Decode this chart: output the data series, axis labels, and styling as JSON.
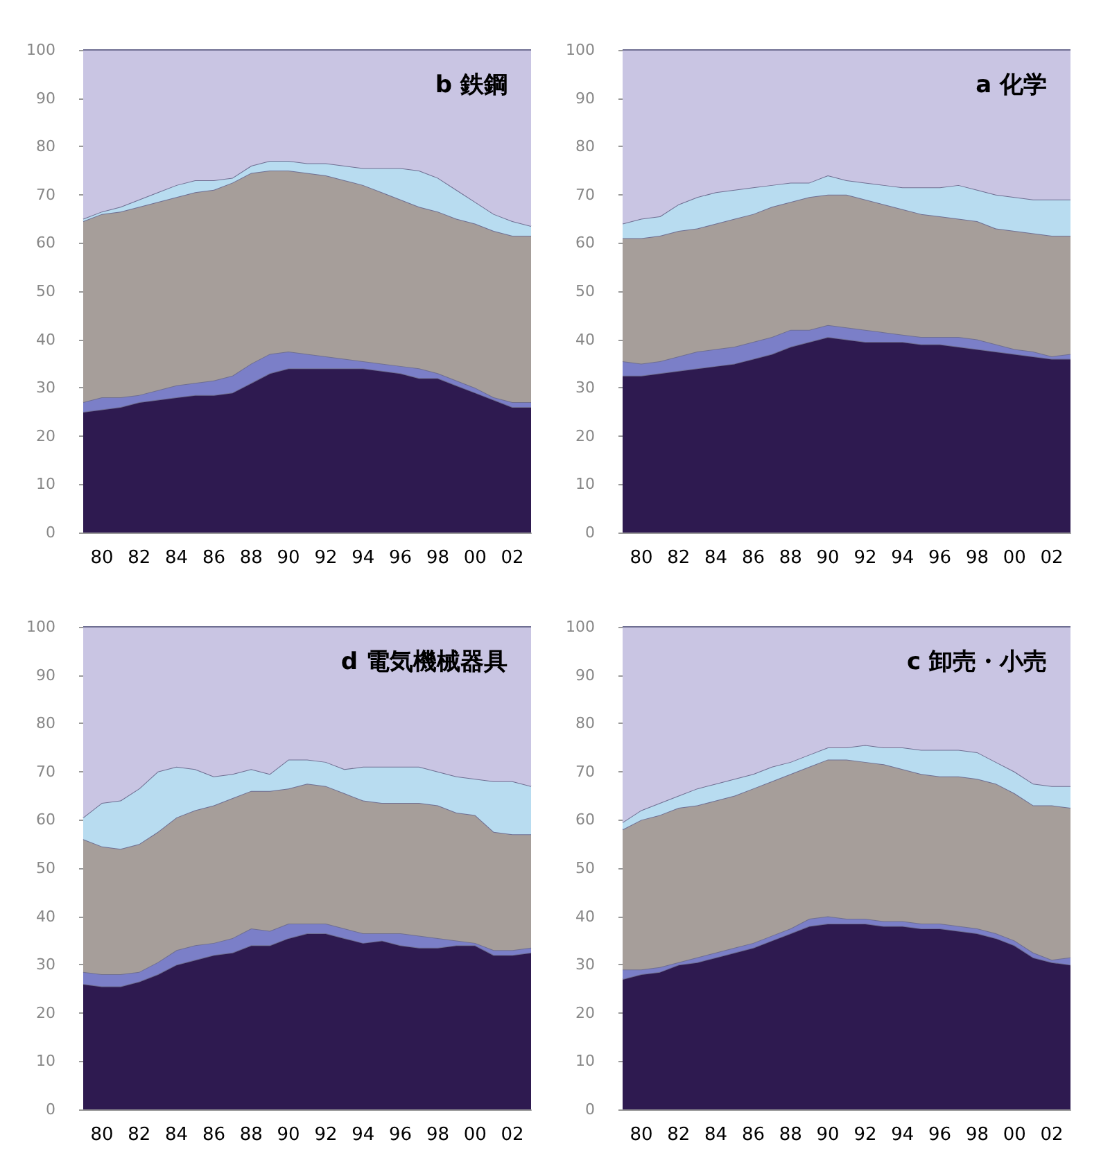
{
  "chart_data": [
    {
      "type": "area",
      "title": "b 鉄鋼",
      "stacked": true,
      "grid": false,
      "categories": [
        null,
        "80",
        null,
        "82",
        null,
        "84",
        null,
        "86",
        null,
        "88",
        null,
        "90",
        null,
        "92",
        null,
        "94",
        null,
        "96",
        null,
        "98",
        null,
        "00",
        null,
        "02",
        null
      ],
      "ylim": [
        0,
        100
      ],
      "yticks": [
        0,
        10,
        20,
        30,
        40,
        50,
        60,
        70,
        80,
        90,
        100
      ],
      "series": [
        {
          "color": "#2e1a50",
          "values": [
            25,
            25.5,
            26,
            27,
            27.5,
            28,
            28.5,
            28.5,
            29,
            31,
            33,
            34,
            34,
            34,
            34,
            34,
            33.5,
            33,
            32,
            32,
            30.5,
            29,
            27.5,
            26,
            26
          ]
        },
        {
          "color": "#7b7fc8",
          "values": [
            2,
            2.5,
            2,
            1.5,
            2,
            2.5,
            2.5,
            3,
            3.5,
            4,
            4,
            3.5,
            3,
            2.5,
            2,
            1.5,
            1.5,
            1.5,
            2,
            1,
            1,
            1,
            0.5,
            1,
            1
          ]
        },
        {
          "color": "#a69e9a",
          "values": [
            37.5,
            38,
            38.5,
            39,
            39,
            39,
            39.5,
            39.5,
            40,
            39.5,
            38,
            37.5,
            37.5,
            37.5,
            37,
            36.5,
            35.5,
            34.5,
            33.5,
            33.5,
            33.5,
            34,
            34.5,
            34.5,
            34.5
          ]
        },
        {
          "color": "#b8dcf0",
          "values": [
            0.5,
            0.5,
            1,
            1.5,
            2,
            2.5,
            2.5,
            2,
            1,
            1.5,
            2,
            2,
            2,
            2.5,
            3,
            3.5,
            5,
            6.5,
            7.5,
            7,
            6,
            4.5,
            3.5,
            3,
            2
          ]
        },
        {
          "color": "#c9c5e3",
          "values": [
            35,
            33.5,
            32.5,
            31,
            29.5,
            28,
            27,
            27,
            26.5,
            24,
            23,
            23,
            23.5,
            23.5,
            24,
            24.5,
            24.5,
            24.5,
            25,
            26.5,
            29,
            31.5,
            34,
            35.5,
            36.5
          ]
        }
      ]
    },
    {
      "type": "area",
      "title": "a 化学",
      "stacked": true,
      "grid": false,
      "categories": [
        null,
        "80",
        null,
        "82",
        null,
        "84",
        null,
        "86",
        null,
        "88",
        null,
        "90",
        null,
        "92",
        null,
        "94",
        null,
        "96",
        null,
        "98",
        null,
        "00",
        null,
        "02",
        null
      ],
      "ylim": [
        0,
        100
      ],
      "yticks": [
        0,
        10,
        20,
        30,
        40,
        50,
        60,
        70,
        80,
        90,
        100
      ],
      "series": [
        {
          "color": "#2e1a50",
          "values": [
            32.5,
            32.5,
            33,
            33.5,
            34,
            34.5,
            35,
            36,
            37,
            38.5,
            39.5,
            40.5,
            40,
            39.5,
            39.5,
            39.5,
            39,
            39,
            38.5,
            38,
            37.5,
            37,
            36.5,
            36,
            36
          ]
        },
        {
          "color": "#7b7fc8",
          "values": [
            3,
            2.5,
            2.5,
            3,
            3.5,
            3.5,
            3.5,
            3.5,
            3.5,
            3.5,
            2.5,
            2.5,
            2.5,
            2.5,
            2,
            1.5,
            1.5,
            1.5,
            2,
            2,
            1.5,
            1,
            1,
            0.5,
            1
          ]
        },
        {
          "color": "#a69e9a",
          "values": [
            25.5,
            26,
            26,
            26,
            25.5,
            26,
            26.5,
            26.5,
            27,
            26.5,
            27.5,
            27,
            27.5,
            27,
            26.5,
            26,
            25.5,
            25,
            24.5,
            24.5,
            24,
            24.5,
            24.5,
            25,
            24.5
          ]
        },
        {
          "color": "#b8dcf0",
          "values": [
            3,
            4,
            4,
            5.5,
            6.5,
            6.5,
            6,
            5.5,
            4.5,
            4,
            3,
            4,
            3,
            3.5,
            4,
            4.5,
            5.5,
            6,
            7,
            6.5,
            7,
            7,
            7,
            7.5,
            7.5
          ]
        },
        {
          "color": "#c9c5e3",
          "values": [
            36,
            35,
            34.5,
            32,
            30.5,
            29.5,
            29,
            28.5,
            28,
            27.5,
            27.5,
            26,
            27,
            27.5,
            28,
            28.5,
            28.5,
            28.5,
            28,
            29,
            30,
            30.5,
            31,
            31,
            31
          ]
        }
      ]
    },
    {
      "type": "area",
      "title": "d 電気機械器具",
      "stacked": true,
      "grid": false,
      "categories": [
        null,
        "80",
        null,
        "82",
        null,
        "84",
        null,
        "86",
        null,
        "88",
        null,
        "90",
        null,
        "92",
        null,
        "94",
        null,
        "96",
        null,
        "98",
        null,
        "00",
        null,
        "02",
        null
      ],
      "ylim": [
        0,
        100
      ],
      "yticks": [
        0,
        10,
        20,
        30,
        40,
        50,
        60,
        70,
        80,
        90,
        100
      ],
      "series": [
        {
          "color": "#2e1a50",
          "values": [
            26,
            25.5,
            25.5,
            26.5,
            28,
            30,
            31,
            32,
            32.5,
            34,
            34,
            35.5,
            36.5,
            36.5,
            35.5,
            34.5,
            35,
            34,
            33.5,
            33.5,
            34,
            34,
            32,
            32,
            32.5
          ]
        },
        {
          "color": "#7b7fc8",
          "values": [
            2.5,
            2.5,
            2.5,
            2,
            2.5,
            3,
            3,
            2.5,
            3,
            3.5,
            3,
            3,
            2,
            2,
            2,
            2,
            1.5,
            2.5,
            2.5,
            2,
            1,
            0.5,
            1,
            1,
            1
          ]
        },
        {
          "color": "#a69e9a",
          "values": [
            27.5,
            26.5,
            26,
            26.5,
            27,
            27.5,
            28,
            28.5,
            29,
            28.5,
            29,
            28,
            29,
            28.5,
            28,
            27.5,
            27,
            27,
            27.5,
            27.5,
            26.5,
            26.5,
            24.5,
            24,
            23.5
          ]
        },
        {
          "color": "#b8dcf0",
          "values": [
            4.5,
            9,
            10,
            11.5,
            12.5,
            10.5,
            8.5,
            6,
            5,
            4.5,
            3.5,
            6,
            5,
            5,
            5,
            7,
            7.5,
            7.5,
            7.5,
            7,
            7.5,
            7.5,
            10.5,
            11,
            10
          ]
        },
        {
          "color": "#c9c5e3",
          "values": [
            39.5,
            36.5,
            36,
            33.5,
            30,
            29,
            29.5,
            31,
            30.5,
            29.5,
            30.5,
            27.5,
            27.5,
            28,
            29.5,
            29,
            29,
            29,
            29,
            30,
            31,
            31.5,
            32,
            32,
            33
          ]
        }
      ]
    },
    {
      "type": "area",
      "title": "c 卸売・小売",
      "stacked": true,
      "grid": false,
      "categories": [
        null,
        "80",
        null,
        "82",
        null,
        "84",
        null,
        "86",
        null,
        "88",
        null,
        "90",
        null,
        "92",
        null,
        "94",
        null,
        "96",
        null,
        "98",
        null,
        "00",
        null,
        "02",
        null
      ],
      "ylim": [
        0,
        100
      ],
      "yticks": [
        0,
        10,
        20,
        30,
        40,
        50,
        60,
        70,
        80,
        90,
        100
      ],
      "series": [
        {
          "color": "#2e1a50",
          "values": [
            27,
            28,
            28.5,
            30,
            30.5,
            31.5,
            32.5,
            33.5,
            35,
            36.5,
            38,
            38.5,
            38.5,
            38.5,
            38,
            38,
            37.5,
            37.5,
            37,
            36.5,
            35.5,
            34,
            31.5,
            30.5,
            30
          ]
        },
        {
          "color": "#7b7fc8",
          "values": [
            2,
            1,
            1,
            0.5,
            1,
            1,
            1,
            1,
            1,
            1,
            1.5,
            1.5,
            1,
            1,
            1,
            1,
            1,
            1,
            1,
            1,
            1,
            1,
            1,
            0.5,
            1.5
          ]
        },
        {
          "color": "#a69e9a",
          "values": [
            29,
            31,
            31.5,
            32,
            31.5,
            31.5,
            31.5,
            32,
            32,
            32,
            31.5,
            32.5,
            33,
            32.5,
            32.5,
            31.5,
            31,
            30.5,
            31,
            31,
            31,
            30.5,
            30.5,
            32,
            31
          ]
        },
        {
          "color": "#b8dcf0",
          "values": [
            1.5,
            2,
            2.5,
            2.5,
            3.5,
            3.5,
            3.5,
            3,
            3,
            2.5,
            2.5,
            2.5,
            2.5,
            3.5,
            3.5,
            4.5,
            5,
            5.5,
            5.5,
            5.5,
            4.5,
            4.5,
            4.5,
            4,
            4.5
          ]
        },
        {
          "color": "#c9c5e3",
          "values": [
            40.5,
            38,
            36.5,
            35,
            33.5,
            32.5,
            31.5,
            30.5,
            29,
            28,
            26.5,
            25,
            25,
            24.5,
            25,
            25,
            25.5,
            25.5,
            25.5,
            26,
            28,
            30,
            32.5,
            33,
            33
          ]
        }
      ]
    }
  ]
}
